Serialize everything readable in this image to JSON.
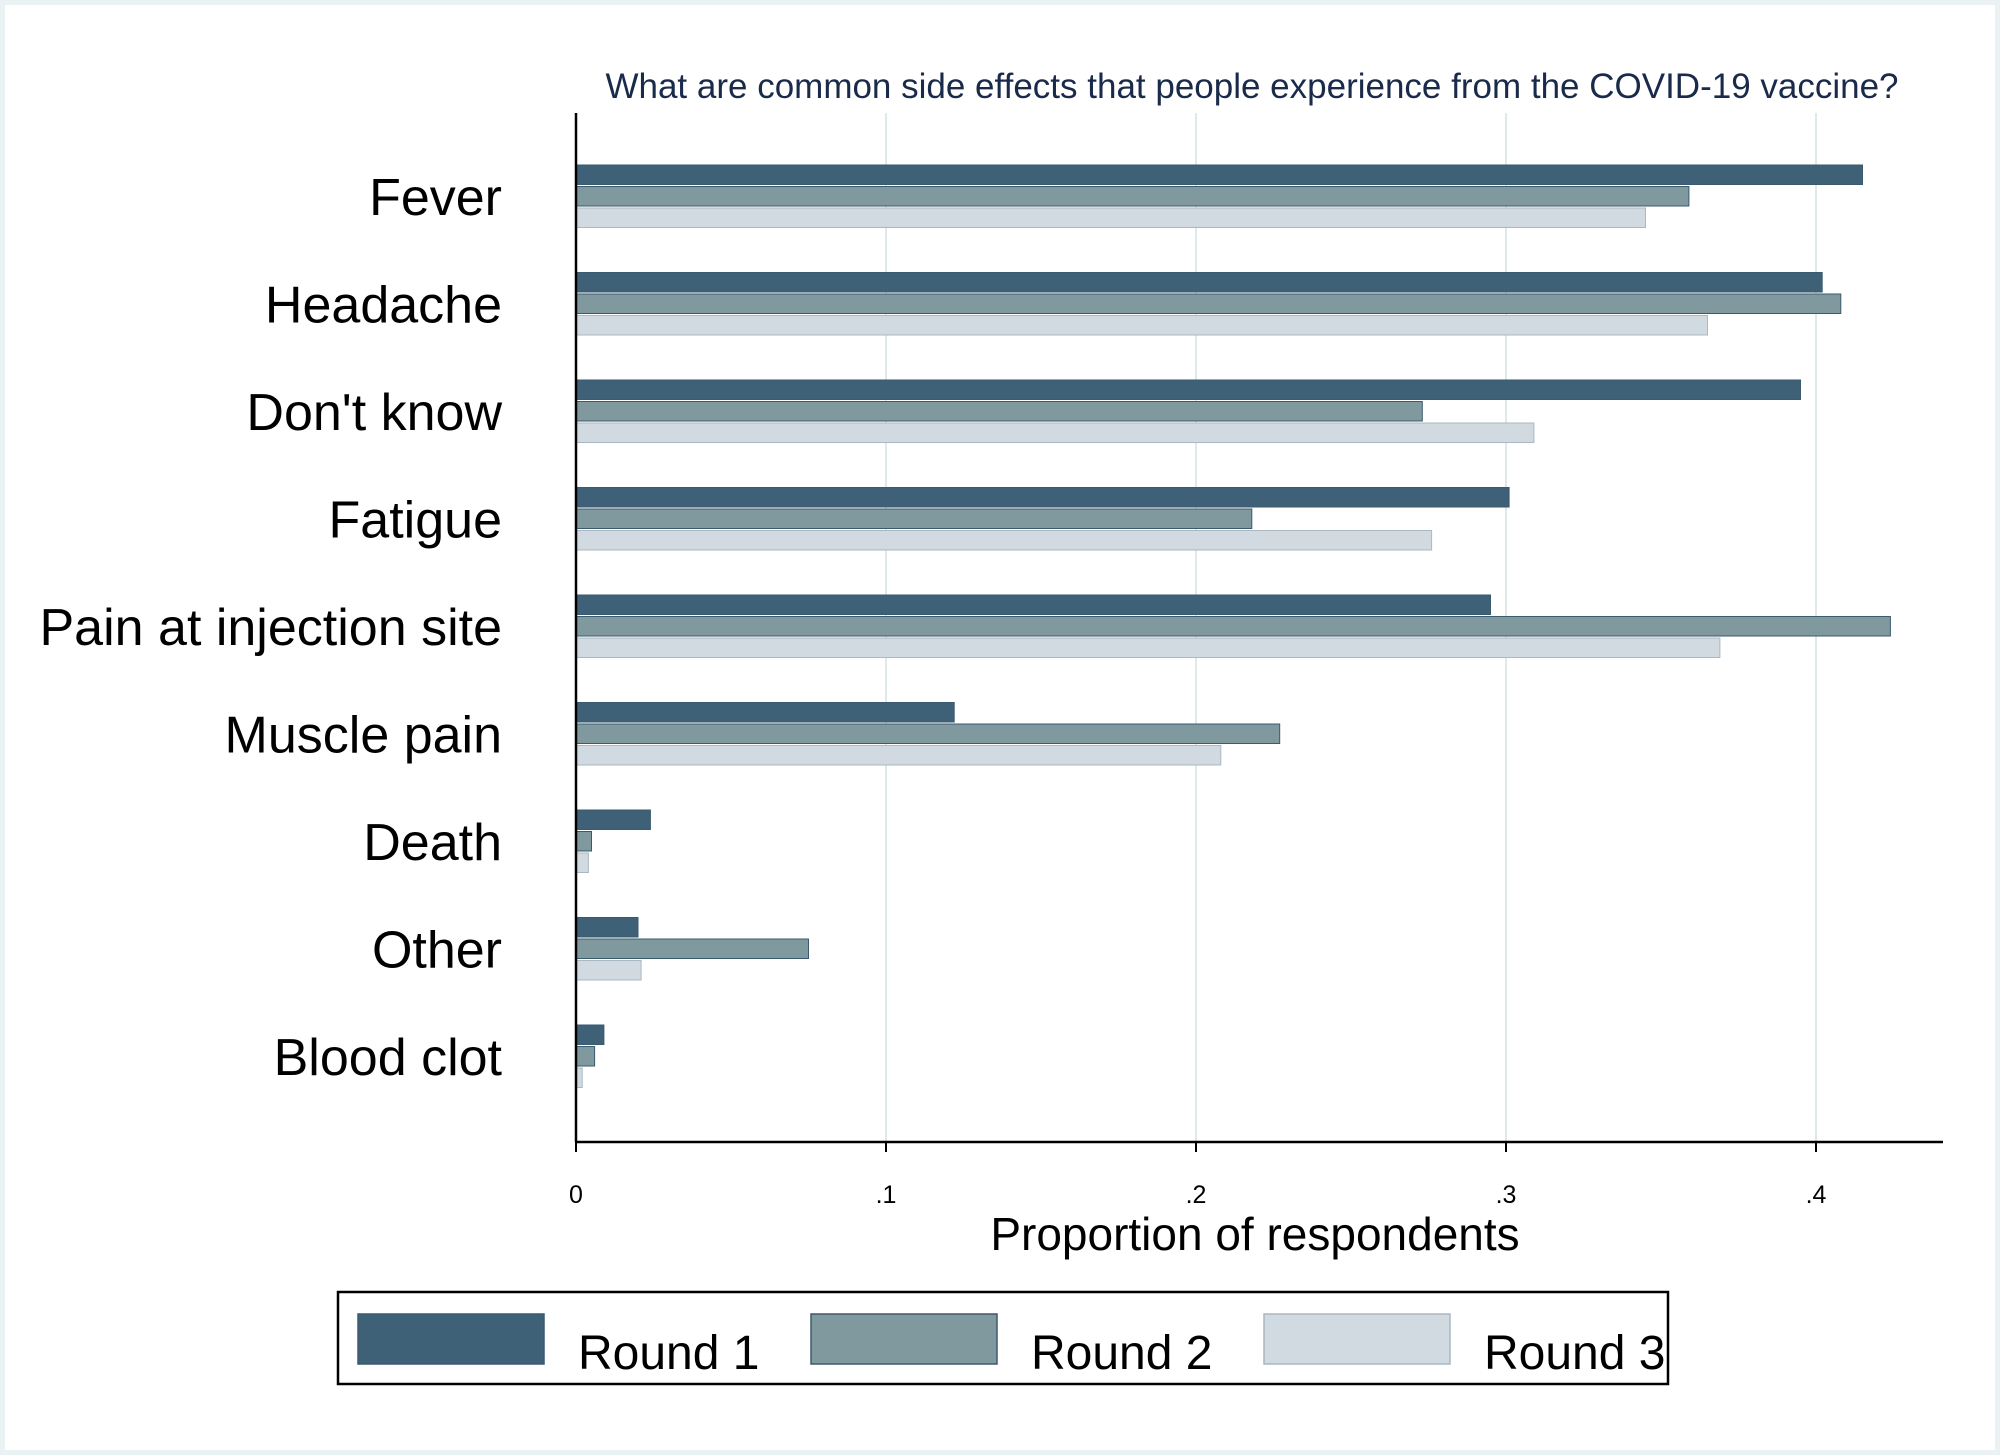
{
  "chart_data": {
    "type": "bar",
    "orientation": "horizontal",
    "title": "What are common side effects that people experience from the COVID-19 vaccine?",
    "xlabel": "Proportion of respondents",
    "ylabel": "",
    "xlim": [
      0,
      0.44
    ],
    "xticks": [
      0,
      0.1,
      0.2,
      0.3,
      0.4
    ],
    "xtick_labels": [
      "0",
      ".1",
      ".2",
      ".3",
      ".4"
    ],
    "grid": "vertical",
    "legend_position": "bottom",
    "categories": [
      "Fever",
      "Headache",
      "Don't know",
      "Fatigue",
      "Pain at injection site",
      "Muscle pain",
      "Death",
      "Other",
      "Blood clot"
    ],
    "series": [
      {
        "name": "Round 1",
        "color": "#3f6177",
        "values": [
          0.415,
          0.402,
          0.395,
          0.301,
          0.295,
          0.122,
          0.024,
          0.02,
          0.009
        ]
      },
      {
        "name": "Round 2",
        "color": "#80999f",
        "values": [
          0.359,
          0.408,
          0.273,
          0.218,
          0.424,
          0.227,
          0.005,
          0.075,
          0.006
        ]
      },
      {
        "name": "Round 3",
        "color": "#d1dae0",
        "values": [
          0.345,
          0.365,
          0.309,
          0.276,
          0.369,
          0.208,
          0.004,
          0.021,
          0.002
        ]
      }
    ]
  }
}
